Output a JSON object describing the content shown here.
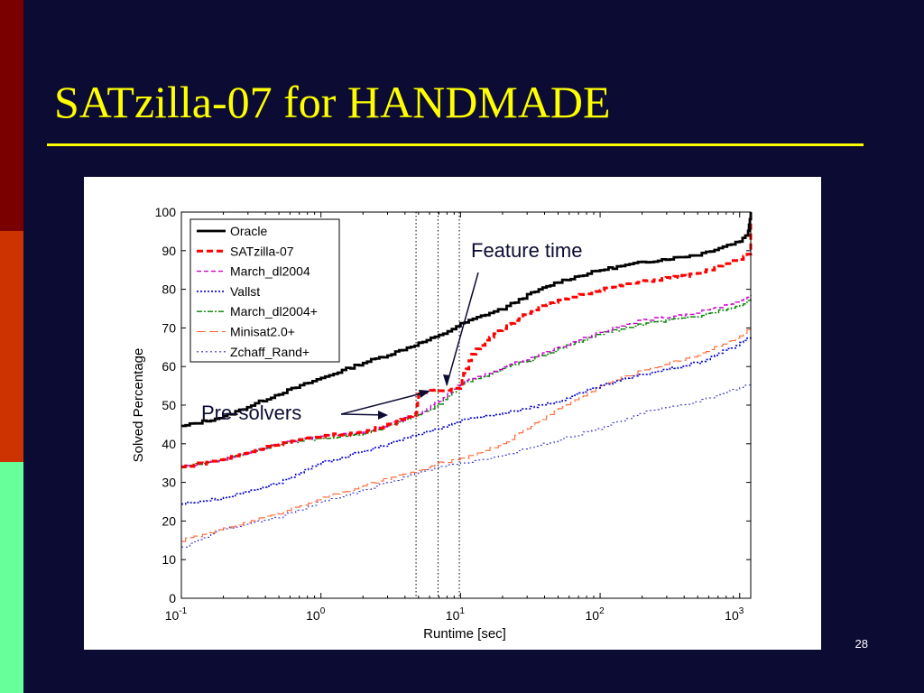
{
  "slide": {
    "title": "SATzilla-07 for HANDMADE",
    "page_number": "28",
    "accent_color": "#ffff00",
    "background_color": "#0b0b33",
    "side_bands": [
      "#7a0000",
      "#cc3300",
      "#66ff99"
    ]
  },
  "chart_data": {
    "type": "line",
    "title": "",
    "xlabel": "Runtime [sec]",
    "ylabel": "Solved Percentage",
    "x_scale": "log",
    "xlim": [
      0.1,
      1200
    ],
    "ylim": [
      0,
      100
    ],
    "x_ticks": [
      {
        "base": "10",
        "exp": "-1",
        "value": 0.1
      },
      {
        "base": "10",
        "exp": "0",
        "value": 1
      },
      {
        "base": "10",
        "exp": "1",
        "value": 10
      },
      {
        "base": "10",
        "exp": "2",
        "value": 100
      },
      {
        "base": "10",
        "exp": "3",
        "value": 1000
      }
    ],
    "y_ticks": [
      "0",
      "10",
      "20",
      "30",
      "40",
      "50",
      "60",
      "70",
      "80",
      "90",
      "100"
    ],
    "grid": false,
    "legend_position": "top-left",
    "vertical_markers": [
      4.8,
      6.9,
      9.8
    ],
    "series": [
      {
        "name": "Oracle",
        "color": "#000000",
        "dash": "",
        "width": 2.8,
        "x": [
          0.1,
          0.2,
          0.5,
          1,
          2,
          3,
          5,
          7,
          10,
          15,
          20,
          30,
          50,
          100,
          200,
          500,
          1000,
          1150,
          1200
        ],
        "y": [
          44.5,
          47,
          53,
          57,
          61,
          63,
          66,
          68,
          71,
          73.5,
          75,
          78.5,
          82,
          85,
          87,
          89,
          92.5,
          95,
          100
        ]
      },
      {
        "name": "SATzilla-07",
        "color": "#ff0000",
        "dash": "7,4",
        "width": 3,
        "x": [
          0.1,
          0.2,
          0.5,
          1,
          2,
          3,
          4,
          4.8,
          5,
          6.5,
          8,
          9.8,
          10.5,
          12,
          15,
          20,
          30,
          50,
          100,
          200,
          500,
          1000,
          1200,
          1200
        ],
        "y": [
          34,
          36,
          40,
          42,
          43,
          45,
          46.5,
          48,
          53,
          54,
          54,
          54.5,
          58,
          63,
          67,
          70,
          74,
          77,
          80,
          82,
          84,
          88,
          89.5,
          100
        ]
      },
      {
        "name": "March_dl2004",
        "color": "#cc00cc",
        "dash": "5,3",
        "width": 1.4,
        "x": [
          0.1,
          0.2,
          0.5,
          1,
          2,
          3,
          5,
          7,
          10,
          15,
          20,
          30,
          50,
          100,
          200,
          500,
          1000,
          1200
        ],
        "y": [
          34,
          36,
          40,
          42,
          43,
          45,
          48,
          51,
          56,
          58,
          60,
          62,
          65,
          69,
          72,
          74,
          77,
          78.5
        ]
      },
      {
        "name": "Vallst",
        "color": "#0000cc",
        "dash": "2,2",
        "width": 1.6,
        "x": [
          0.1,
          0.2,
          0.5,
          1,
          2,
          3,
          5,
          7,
          10,
          20,
          50,
          100,
          200,
          500,
          1000,
          1200
        ],
        "y": [
          24.5,
          26,
          30,
          35,
          38,
          40,
          42.5,
          44,
          46,
          48,
          51,
          55,
          58,
          61,
          66,
          68
        ]
      },
      {
        "name": "March_dl2004+",
        "color": "#008000",
        "dash": "6,2,2,2",
        "width": 1.4,
        "x": [
          0.1,
          0.2,
          0.5,
          1,
          2,
          3,
          5,
          7,
          10,
          15,
          20,
          30,
          50,
          100,
          200,
          500,
          1000,
          1200
        ],
        "y": [
          34,
          36,
          40,
          41.5,
          42.5,
          44.5,
          47.5,
          50.5,
          55.5,
          57.5,
          59.5,
          61.5,
          64.5,
          68.5,
          71,
          73,
          76,
          77.5
        ]
      },
      {
        "name": "Minisat2.0+",
        "color": "#ff6633",
        "dash": "10,4",
        "width": 1.1,
        "x": [
          0.1,
          0.2,
          0.5,
          1,
          2,
          3,
          5,
          7,
          10,
          20,
          30,
          50,
          100,
          200,
          500,
          1000,
          1200
        ],
        "y": [
          15,
          18,
          22,
          26,
          29,
          31,
          33,
          35,
          36,
          40,
          44,
          49,
          55,
          59,
          63,
          68,
          70
        ]
      },
      {
        "name": "Zchaff_Rand+",
        "color": "#3333cc",
        "dash": "2,3",
        "width": 1.1,
        "x": [
          0.1,
          0.2,
          0.5,
          1,
          2,
          3,
          5,
          7,
          10,
          20,
          50,
          100,
          200,
          500,
          1000,
          1200
        ],
        "y": [
          13,
          18,
          21,
          25,
          28,
          30,
          32.5,
          34,
          35,
          37,
          41,
          44,
          48,
          51,
          54.5,
          56
        ]
      }
    ],
    "annotations": [
      {
        "text": "Feature time"
      },
      {
        "text": "Pre-solvers"
      }
    ]
  }
}
